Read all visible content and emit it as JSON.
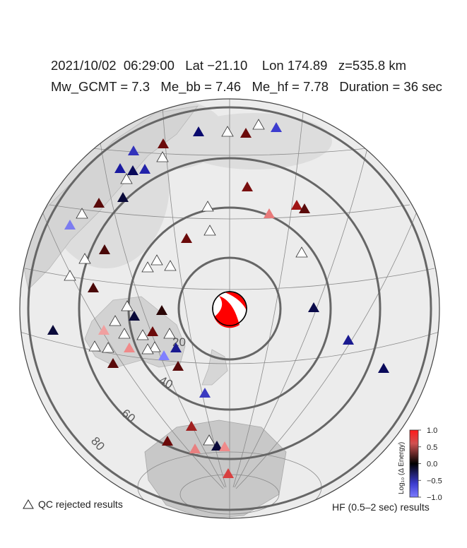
{
  "header": {
    "line1": "2021/10/02  06:29:00   Lat −21.10    Lon 174.89   z=535.8 km",
    "line2": "Mw_GCMT = 7.3   Me_bb = 7.46   Me_hf = 7.78   Duration = 36 sec"
  },
  "distance_rings": [
    {
      "deg": 20,
      "label": "20"
    },
    {
      "deg": 40,
      "label": "40"
    },
    {
      "deg": 60,
      "label": "60"
    },
    {
      "deg": 80,
      "label": "80"
    }
  ],
  "colorbar": {
    "label": "Log₁₀ (Δ Energy)",
    "ticks": [
      "1.0",
      "0.5",
      "0.0",
      "−0.5",
      "−1.0"
    ],
    "colors": {
      "high": "#ff0000",
      "mid": "#000000",
      "low": "#0000ff"
    }
  },
  "legend": {
    "qc_rejected": "QC rejected results",
    "hf_results": "HF (0.5–2 sec) results"
  },
  "colors": {
    "rejected_fill": "#ffffff",
    "ring_stroke": "#666666",
    "beachball_fill": "#ff0000"
  }
}
